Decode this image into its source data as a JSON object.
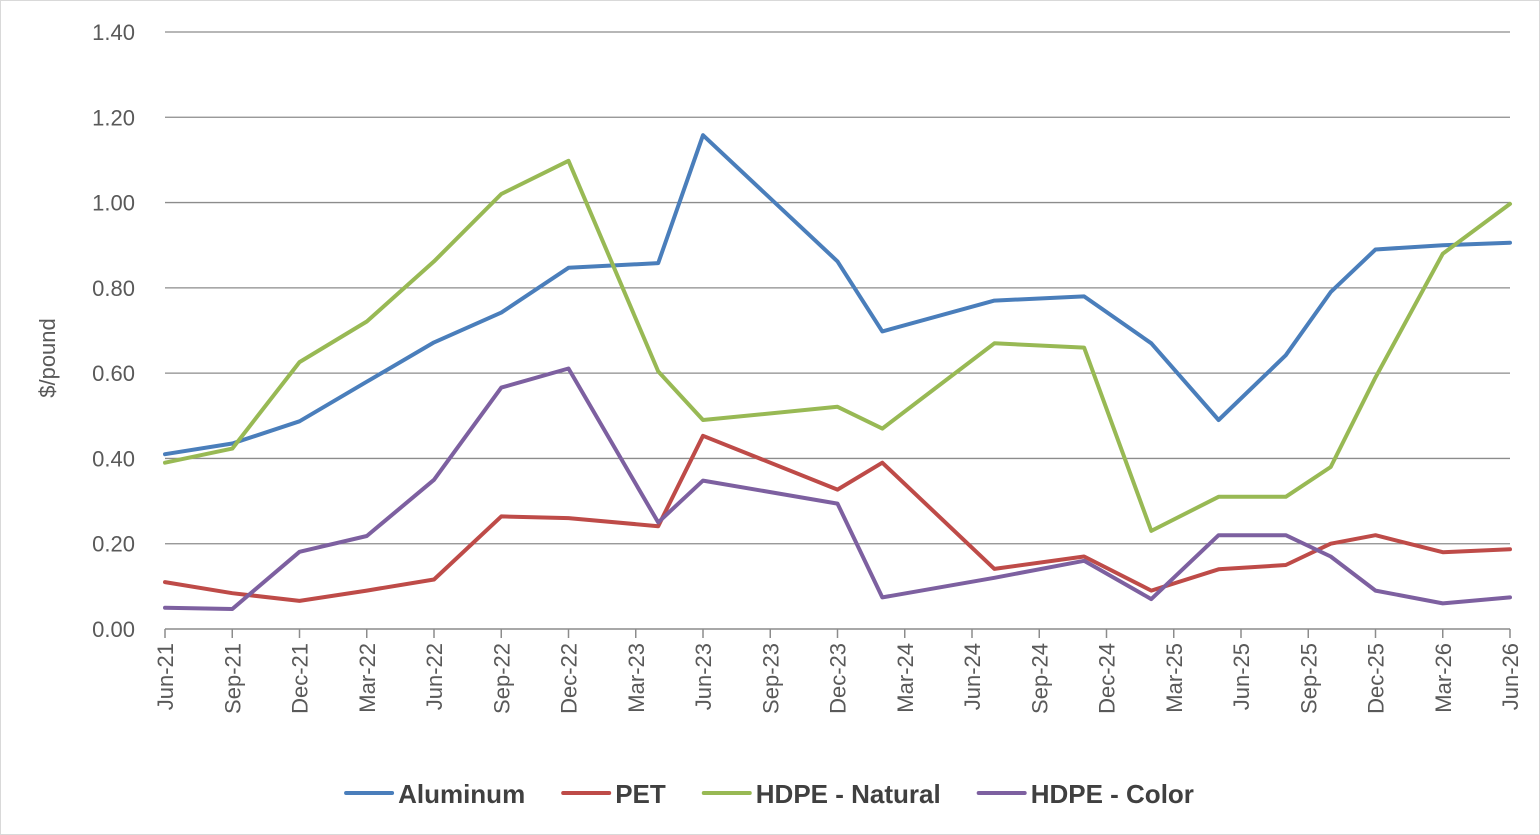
{
  "chart_data": {
    "type": "line",
    "title": "",
    "xlabel": "",
    "ylabel": "$/pound",
    "ylim": [
      0,
      1.4
    ],
    "yticks": [
      "0.00",
      "0.20",
      "0.40",
      "0.60",
      "0.80",
      "1.00",
      "1.20",
      "1.40"
    ],
    "grid": true,
    "legend_position": "bottom",
    "x_start": "2021-06",
    "x_end": "2026-06",
    "xticks": [
      {
        "date": "2021-06",
        "label": "Jun-21"
      },
      {
        "date": "2021-09",
        "label": "Sep-21"
      },
      {
        "date": "2021-12",
        "label": "Dec-21"
      },
      {
        "date": "2022-03",
        "label": "Mar-22"
      },
      {
        "date": "2022-06",
        "label": "Jun-22"
      },
      {
        "date": "2022-09",
        "label": "Sep-22"
      },
      {
        "date": "2022-12",
        "label": "Dec-22"
      },
      {
        "date": "2023-03",
        "label": "Mar-23"
      },
      {
        "date": "2023-06",
        "label": "Jun-23"
      },
      {
        "date": "2023-09",
        "label": "Sep-23"
      },
      {
        "date": "2023-12",
        "label": "Dec-23"
      },
      {
        "date": "2024-03",
        "label": "Mar-24"
      },
      {
        "date": "2024-06",
        "label": "Jun-24"
      },
      {
        "date": "2024-09",
        "label": "Sep-24"
      },
      {
        "date": "2024-12",
        "label": "Dec-24"
      },
      {
        "date": "2025-03",
        "label": "Mar-25"
      },
      {
        "date": "2025-06",
        "label": "Jun-25"
      },
      {
        "date": "2025-09",
        "label": "Sep-25"
      },
      {
        "date": "2025-12",
        "label": "Dec-25"
      },
      {
        "date": "2026-03",
        "label": "Mar-26"
      },
      {
        "date": "2026-06",
        "label": "Jun-26"
      }
    ],
    "series": [
      {
        "name": "Aluminum",
        "color": "#4a7ebb",
        "points": [
          [
            "2021-06",
            0.41
          ],
          [
            "2021-09",
            0.435
          ],
          [
            "2021-12",
            0.487
          ],
          [
            "2022-03",
            0.58
          ],
          [
            "2022-06",
            0.672
          ],
          [
            "2022-09",
            0.742
          ],
          [
            "2022-12",
            0.847
          ],
          [
            "2023-04",
            0.858
          ],
          [
            "2023-06",
            1.158
          ],
          [
            "2023-12",
            0.862
          ],
          [
            "2024-02",
            0.698
          ],
          [
            "2024-07",
            0.77
          ],
          [
            "2024-11",
            0.78
          ],
          [
            "2025-02",
            0.67
          ],
          [
            "2025-05",
            0.49
          ],
          [
            "2025-08",
            0.642
          ],
          [
            "2025-10",
            0.79
          ],
          [
            "2025-12",
            0.89
          ],
          [
            "2026-03",
            0.9
          ],
          [
            "2026-06",
            0.906
          ]
        ]
      },
      {
        "name": "PET",
        "color": "#be4b48",
        "points": [
          [
            "2021-06",
            0.11
          ],
          [
            "2021-09",
            0.084
          ],
          [
            "2021-12",
            0.066
          ],
          [
            "2022-03",
            0.09
          ],
          [
            "2022-06",
            0.116
          ],
          [
            "2022-09",
            0.264
          ],
          [
            "2022-12",
            0.26
          ],
          [
            "2023-04",
            0.241
          ],
          [
            "2023-06",
            0.453
          ],
          [
            "2023-12",
            0.327
          ],
          [
            "2024-02",
            0.39
          ],
          [
            "2024-07",
            0.141
          ],
          [
            "2024-11",
            0.17
          ],
          [
            "2025-02",
            0.09
          ],
          [
            "2025-05",
            0.14
          ],
          [
            "2025-08",
            0.15
          ],
          [
            "2025-10",
            0.2
          ],
          [
            "2025-12",
            0.22
          ],
          [
            "2026-03",
            0.18
          ],
          [
            "2026-06",
            0.187
          ]
        ]
      },
      {
        "name": "HDPE - Natural",
        "color": "#98b954",
        "points": [
          [
            "2021-06",
            0.39
          ],
          [
            "2021-09",
            0.423
          ],
          [
            "2021-12",
            0.626
          ],
          [
            "2022-03",
            0.721
          ],
          [
            "2022-06",
            0.862
          ],
          [
            "2022-09",
            1.02
          ],
          [
            "2022-12",
            1.098
          ],
          [
            "2023-04",
            0.604
          ],
          [
            "2023-06",
            0.49
          ],
          [
            "2023-12",
            0.521
          ],
          [
            "2024-02",
            0.47
          ],
          [
            "2024-07",
            0.67
          ],
          [
            "2024-11",
            0.66
          ],
          [
            "2025-02",
            0.23
          ],
          [
            "2025-05",
            0.31
          ],
          [
            "2025-08",
            0.31
          ],
          [
            "2025-10",
            0.38
          ],
          [
            "2025-12",
            0.59
          ],
          [
            "2026-03",
            0.88
          ],
          [
            "2026-06",
            0.997
          ]
        ]
      },
      {
        "name": "HDPE - Color",
        "color": "#7d60a0",
        "points": [
          [
            "2021-06",
            0.05
          ],
          [
            "2021-09",
            0.047
          ],
          [
            "2021-12",
            0.181
          ],
          [
            "2022-03",
            0.218
          ],
          [
            "2022-06",
            0.35
          ],
          [
            "2022-09",
            0.566
          ],
          [
            "2022-12",
            0.611
          ],
          [
            "2023-04",
            0.25
          ],
          [
            "2023-06",
            0.348
          ],
          [
            "2023-12",
            0.294
          ],
          [
            "2024-02",
            0.074
          ],
          [
            "2024-07",
            0.12
          ],
          [
            "2024-11",
            0.16
          ],
          [
            "2025-02",
            0.07
          ],
          [
            "2025-05",
            0.22
          ],
          [
            "2025-08",
            0.22
          ],
          [
            "2025-10",
            0.17
          ],
          [
            "2025-12",
            0.09
          ],
          [
            "2026-03",
            0.06
          ],
          [
            "2026-06",
            0.074
          ]
        ]
      }
    ]
  }
}
